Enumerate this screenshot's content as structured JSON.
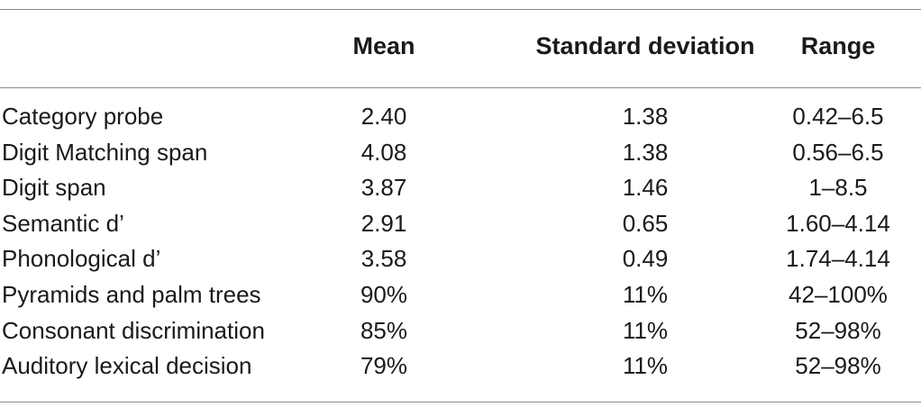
{
  "table": {
    "headers": {
      "label": "",
      "mean": "Mean",
      "sd": "Standard deviation",
      "range": "Range"
    },
    "rows": [
      {
        "label": "Category probe",
        "mean": "2.40",
        "sd": "1.38",
        "range": "0.42–6.5"
      },
      {
        "label": "Digit Matching span",
        "mean": "4.08",
        "sd": "1.38",
        "range": "0.56–6.5"
      },
      {
        "label": "Digit span",
        "mean": "3.87",
        "sd": "1.46",
        "range": "1–8.5"
      },
      {
        "label": "Semantic d’",
        "mean": "2.91",
        "sd": "0.65",
        "range": "1.60–4.14"
      },
      {
        "label": "Phonological d’",
        "mean": "3.58",
        "sd": "0.49",
        "range": "1.74–4.14"
      },
      {
        "label": "Pyramids and palm trees",
        "mean": "90%",
        "sd": "11%",
        "range": "42–100%"
      },
      {
        "label": "Consonant discrimination",
        "mean": "85%",
        "sd": "11%",
        "range": "52–98%"
      },
      {
        "label": "Auditory lexical decision",
        "mean": "79%",
        "sd": "11%",
        "range": "52–98%"
      }
    ]
  }
}
